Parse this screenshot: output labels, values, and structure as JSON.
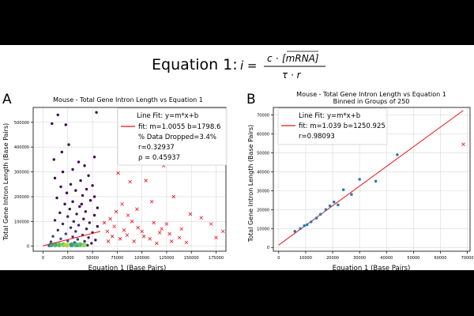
{
  "equation": {
    "label": "Equation 1:",
    "lhs": "i =",
    "numerator_c": "c",
    "numerator_dot": "·",
    "numerator_mrna": "[mRNA]",
    "denominator": "τ · r"
  },
  "panel_a": {
    "letter": "A"
  },
  "panel_b": {
    "letter": "B"
  },
  "colors": {
    "fit_line": "#e8141c",
    "outlier": "#e8141c",
    "scatter_b": "#2c7bb6",
    "grid": "#d9d9d9"
  },
  "chart_data": [
    {
      "type": "scatter",
      "title": "Mouse - Total Gene Intron Length vs Equation 1",
      "xlabel": "Equation 1 (Base Pairs)",
      "ylabel": "Total Gene Intron Length (Base Pairs)",
      "xlim": [
        -10000,
        185000
      ],
      "ylim": [
        -20000,
        560000
      ],
      "xticks": [
        0,
        25000,
        50000,
        75000,
        100000,
        125000,
        150000,
        175000
      ],
      "xtick_labels": [
        "0",
        "25000",
        "50000",
        "75000",
        "100000",
        "125000",
        "150000",
        "175000"
      ],
      "yticks": [
        0,
        100000,
        200000,
        300000,
        400000,
        500000
      ],
      "ytick_labels": [
        "0",
        "100000",
        "200000",
        "300000",
        "400000",
        "500000"
      ],
      "legend": {
        "header": "Line Fit: y=m*x+b",
        "fit_label": "fit: m=1.0055 b=1798.6",
        "dropped": "% Data Dropped=3.4%",
        "r": "r=0.32937",
        "rho": "ρ = 0.45937"
      },
      "fit": {
        "m": 1.0055,
        "b": 1798.6
      },
      "kept_points": [
        [
          15000,
          530000
        ],
        [
          23000,
          490000
        ],
        [
          9000,
          495000
        ],
        [
          26000,
          410000
        ],
        [
          36000,
          340000
        ],
        [
          42000,
          325000
        ],
        [
          30000,
          310000
        ],
        [
          20000,
          300000
        ],
        [
          46000,
          285000
        ],
        [
          12000,
          275000
        ],
        [
          38000,
          265000
        ],
        [
          28000,
          250000
        ],
        [
          50000,
          245000
        ],
        [
          18000,
          240000
        ],
        [
          44000,
          230000
        ],
        [
          33000,
          225000
        ],
        [
          24000,
          215000
        ],
        [
          40000,
          205000
        ],
        [
          52000,
          200000
        ],
        [
          14000,
          195000
        ],
        [
          48000,
          185000
        ],
        [
          30000,
          180000
        ],
        [
          22000,
          170000
        ],
        [
          37000,
          160000
        ],
        [
          55000,
          155000
        ],
        [
          27000,
          150000
        ],
        [
          43000,
          140000
        ],
        [
          17000,
          135000
        ],
        [
          34000,
          130000
        ],
        [
          52000,
          125000
        ],
        [
          25000,
          120000
        ],
        [
          41000,
          110000
        ],
        [
          12000,
          105000
        ],
        [
          31000,
          100000
        ],
        [
          47000,
          95000
        ],
        [
          20000,
          90000
        ],
        [
          36000,
          85000
        ],
        [
          55000,
          80000
        ],
        [
          28000,
          75000
        ],
        [
          44000,
          70000
        ],
        [
          15000,
          65000
        ],
        [
          33000,
          60000
        ],
        [
          50000,
          55000
        ],
        [
          23000,
          50000
        ],
        [
          40000,
          45000
        ],
        [
          10000,
          40000
        ],
        [
          30000,
          38000
        ],
        [
          46000,
          35000
        ],
        [
          18000,
          30000
        ],
        [
          35000,
          28000
        ],
        [
          53000,
          25000
        ],
        [
          25000,
          22000
        ],
        [
          42000,
          20000
        ],
        [
          8000,
          18000
        ],
        [
          32000,
          15000
        ],
        [
          49000,
          12000
        ],
        [
          20000,
          10000
        ],
        [
          38000,
          8000
        ],
        [
          13000,
          6000
        ],
        [
          28000,
          5000
        ],
        [
          45000,
          4000
        ],
        [
          16000,
          3000
        ],
        [
          35000,
          2500
        ],
        [
          6000,
          2000
        ],
        [
          24000,
          1500
        ],
        [
          52000,
          360000
        ],
        [
          54000,
          540000
        ],
        [
          11000,
          350000
        ],
        [
          19000,
          380000
        ],
        [
          39000,
          170000
        ]
      ],
      "outlier_points": [
        [
          76000,
          295000
        ],
        [
          88000,
          260000
        ],
        [
          104000,
          265000
        ],
        [
          122000,
          325000
        ],
        [
          132000,
          200000
        ],
        [
          110000,
          180000
        ],
        [
          95000,
          150000
        ],
        [
          80000,
          170000
        ],
        [
          160000,
          115000
        ],
        [
          149000,
          130000
        ],
        [
          170000,
          90000
        ],
        [
          182000,
          60000
        ],
        [
          175000,
          35000
        ],
        [
          140000,
          70000
        ],
        [
          125000,
          90000
        ],
        [
          118000,
          55000
        ],
        [
          100000,
          60000
        ],
        [
          90000,
          100000
        ],
        [
          85000,
          45000
        ],
        [
          72000,
          80000
        ],
        [
          68000,
          110000
        ],
        [
          78000,
          30000
        ],
        [
          92000,
          20000
        ],
        [
          108000,
          30000
        ],
        [
          115000,
          12000
        ],
        [
          130000,
          20000
        ],
        [
          145000,
          15000
        ],
        [
          65000,
          60000
        ],
        [
          70000,
          40000
        ],
        [
          82000,
          65000
        ],
        [
          62000,
          95000
        ],
        [
          96000,
          75000
        ],
        [
          112000,
          95000
        ],
        [
          128000,
          50000
        ],
        [
          138000,
          35000
        ],
        [
          86000,
          125000
        ],
        [
          74000,
          140000
        ],
        [
          102000,
          40000
        ],
        [
          66000,
          20000
        ],
        [
          120000,
          70000
        ]
      ]
    },
    {
      "type": "scatter",
      "title": "Mouse - Total Gene Intron Length vs Equation 1",
      "subtitle": "Binned in Groups of 250",
      "xlabel": "Equation 1 (Base Pairs)",
      "ylabel": "Total Gene Intron Length (Base Pairs)",
      "xlim": [
        -2000,
        71000
      ],
      "ylim": [
        -2000,
        74000
      ],
      "xticks": [
        0,
        10000,
        20000,
        30000,
        40000,
        50000,
        60000,
        70000
      ],
      "xtick_labels": [
        "0",
        "10000",
        "20000",
        "30000",
        "40000",
        "50000",
        "60000",
        "70000"
      ],
      "yticks": [
        0,
        10000,
        20000,
        30000,
        40000,
        50000,
        60000,
        70000
      ],
      "ytick_labels": [
        "0",
        "10000",
        "20000",
        "30000",
        "40000",
        "50000",
        "60000",
        "70000"
      ],
      "legend": {
        "header": "Line Fit: y=m*x+b",
        "fit_label": "fit: m=1.039 b=1250.925",
        "r": "r=0.98093"
      },
      "fit": {
        "m": 1.039,
        "b": 1250.925
      },
      "points": [
        [
          6000,
          8500
        ],
        [
          8000,
          10000
        ],
        [
          9500,
          11500
        ],
        [
          10500,
          12000
        ],
        [
          12000,
          13500
        ],
        [
          14000,
          15500
        ],
        [
          15500,
          17500
        ],
        [
          17500,
          20000
        ],
        [
          19000,
          22000
        ],
        [
          20500,
          24000
        ],
        [
          22000,
          22500
        ],
        [
          24000,
          30500
        ],
        [
          27000,
          28000
        ],
        [
          30000,
          36000
        ],
        [
          36000,
          35000
        ],
        [
          44000,
          49000
        ]
      ],
      "outlier_points": [
        [
          68500,
          54500
        ]
      ]
    }
  ]
}
